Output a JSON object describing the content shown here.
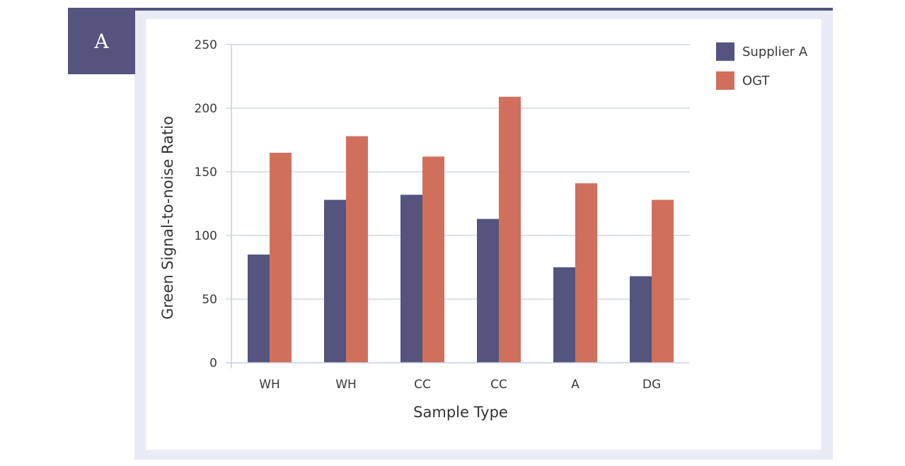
{
  "panel_label": "A",
  "chart_data": {
    "type": "bar",
    "categories": [
      "WH",
      "WH",
      "CC",
      "CC",
      "A",
      "DG"
    ],
    "series": [
      {
        "name": "Supplier A",
        "values": [
          85,
          128,
          132,
          113,
          75,
          68
        ],
        "color": "#54547f"
      },
      {
        "name": "OGT",
        "values": [
          165,
          178,
          162,
          209,
          141,
          128
        ],
        "color": "#d0705c"
      }
    ],
    "xlabel": "Sample Type",
    "ylabel": "Green Signal-to-noise Ratio",
    "ylim": [
      0,
      250
    ],
    "yticks": [
      0,
      50,
      100,
      150,
      200,
      250
    ],
    "grid": true,
    "legend_position": "top-right"
  }
}
